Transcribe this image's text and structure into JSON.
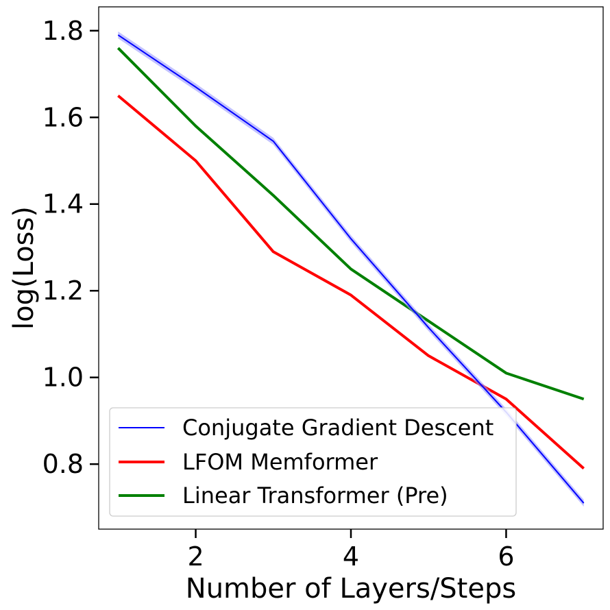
{
  "chart_data": {
    "type": "line",
    "title": "",
    "xlabel": "Number of Layers/Steps",
    "ylabel": "log(Loss)",
    "xlim": [
      0.75,
      7.25
    ],
    "ylim": [
      0.65,
      1.855
    ],
    "x_ticks": [
      2,
      4,
      6
    ],
    "y_ticks": [
      0.8,
      1.0,
      1.2,
      1.4,
      1.6,
      1.8
    ],
    "x_tick_labels": [
      "2",
      "4",
      "6"
    ],
    "y_tick_labels": [
      "0.8",
      "1.0",
      "1.2",
      "1.4",
      "1.6",
      "1.8"
    ],
    "grid": false,
    "legend_position": "lower-left",
    "x": [
      1,
      2,
      3,
      4,
      5,
      6,
      7
    ],
    "series": [
      {
        "name": "Conjugate Gradient Descent",
        "color": "#0000ff",
        "band_color": "#9999ff",
        "values": [
          1.79,
          1.67,
          1.545,
          1.32,
          1.115,
          0.92,
          0.71
        ],
        "band": [
          0.008,
          0.008,
          0.008,
          0.008,
          0.008,
          0.008,
          0.008
        ]
      },
      {
        "name": "LFOM Memformer",
        "color": "#ff0000",
        "values": [
          1.65,
          1.5,
          1.29,
          1.19,
          1.05,
          0.95,
          0.79
        ]
      },
      {
        "name": "Linear Transformer (Pre)",
        "color": "#008000",
        "values": [
          1.76,
          1.58,
          1.42,
          1.25,
          1.13,
          1.01,
          0.95
        ]
      }
    ]
  }
}
